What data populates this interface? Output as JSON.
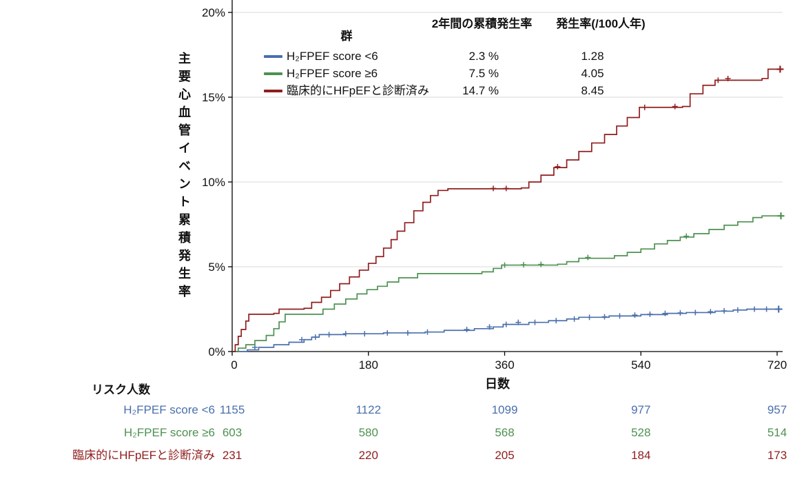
{
  "chart_data": {
    "type": "line",
    "subtype": "cumulative-incidence-step-curves",
    "title": "",
    "xlabel": "日数",
    "ylabel": "主要心血管イベント累積発生率",
    "legend_title": "群",
    "column_headers": {
      "cumulative": "2年間の累積発生率",
      "rate": "発生率(/100人年)"
    },
    "xlim": [
      0,
      740
    ],
    "ylim": [
      0,
      20
    ],
    "grid": "horizontal",
    "x_tick_values": [
      0,
      180,
      360,
      540,
      720
    ],
    "x_tick_labels": [
      "0",
      "180",
      "360",
      "540",
      "720"
    ],
    "y_tick_values": [
      0,
      5,
      10,
      15,
      20
    ],
    "y_tick_labels": [
      "0%",
      "5%",
      "10%",
      "15%",
      "20%"
    ],
    "series": [
      {
        "name": "H₂FPEF score <6",
        "color": "#4a6fad",
        "two_year_cumulative_incidence": "2.3 %",
        "incidence_rate_per_100py": "1.28",
        "steps": [
          [
            0,
            0
          ],
          [
            20,
            0.1
          ],
          [
            35,
            0.25
          ],
          [
            55,
            0.4
          ],
          [
            75,
            0.55
          ],
          [
            95,
            0.7
          ],
          [
            105,
            0.85
          ],
          [
            115,
            1.0
          ],
          [
            150,
            1.05
          ],
          [
            200,
            1.1
          ],
          [
            255,
            1.15
          ],
          [
            280,
            1.25
          ],
          [
            320,
            1.35
          ],
          [
            345,
            1.45
          ],
          [
            358,
            1.6
          ],
          [
            392,
            1.72
          ],
          [
            418,
            1.82
          ],
          [
            442,
            1.92
          ],
          [
            458,
            2.02
          ],
          [
            498,
            2.1
          ],
          [
            540,
            2.18
          ],
          [
            575,
            2.25
          ],
          [
            600,
            2.3
          ],
          [
            638,
            2.38
          ],
          [
            662,
            2.45
          ],
          [
            680,
            2.5
          ],
          [
            727,
            2.5
          ]
        ],
        "censor_marks": [
          [
            30,
            0.25
          ],
          [
            92,
            0.7
          ],
          [
            110,
            0.85
          ],
          [
            128,
            1.0
          ],
          [
            150,
            1.05
          ],
          [
            175,
            1.05
          ],
          [
            205,
            1.1
          ],
          [
            232,
            1.1
          ],
          [
            258,
            1.15
          ],
          [
            310,
            1.3
          ],
          [
            340,
            1.45
          ],
          [
            362,
            1.6
          ],
          [
            378,
            1.72
          ],
          [
            400,
            1.72
          ],
          [
            428,
            1.82
          ],
          [
            452,
            1.92
          ],
          [
            472,
            2.02
          ],
          [
            492,
            2.05
          ],
          [
            512,
            2.1
          ],
          [
            532,
            2.15
          ],
          [
            552,
            2.2
          ],
          [
            572,
            2.25
          ],
          [
            592,
            2.28
          ],
          [
            612,
            2.3
          ],
          [
            632,
            2.35
          ],
          [
            650,
            2.4
          ],
          [
            668,
            2.45
          ],
          [
            690,
            2.5
          ],
          [
            706,
            2.5
          ],
          [
            722,
            2.5
          ]
        ]
      },
      {
        "name": "H₂FPEF score ≥6",
        "color": "#4d9151",
        "two_year_cumulative_incidence": "7.5 %",
        "incidence_rate_per_100py": "4.05",
        "steps": [
          [
            0,
            0
          ],
          [
            8,
            0.2
          ],
          [
            18,
            0.4
          ],
          [
            30,
            0.65
          ],
          [
            45,
            0.95
          ],
          [
            55,
            1.35
          ],
          [
            62,
            1.75
          ],
          [
            70,
            2.2
          ],
          [
            108,
            2.2
          ],
          [
            120,
            2.5
          ],
          [
            135,
            2.8
          ],
          [
            150,
            3.1
          ],
          [
            165,
            3.4
          ],
          [
            178,
            3.65
          ],
          [
            192,
            3.85
          ],
          [
            205,
            4.1
          ],
          [
            220,
            4.35
          ],
          [
            245,
            4.6
          ],
          [
            330,
            4.7
          ],
          [
            345,
            4.9
          ],
          [
            356,
            5.1
          ],
          [
            430,
            5.15
          ],
          [
            442,
            5.3
          ],
          [
            458,
            5.5
          ],
          [
            505,
            5.65
          ],
          [
            522,
            5.85
          ],
          [
            540,
            6.05
          ],
          [
            558,
            6.35
          ],
          [
            575,
            6.55
          ],
          [
            592,
            6.75
          ],
          [
            610,
            6.95
          ],
          [
            630,
            7.2
          ],
          [
            650,
            7.45
          ],
          [
            668,
            7.65
          ],
          [
            688,
            7.9
          ],
          [
            700,
            8.0
          ],
          [
            727,
            8.0
          ]
        ],
        "censor_marks": [
          [
            360,
            5.1
          ],
          [
            385,
            5.12
          ],
          [
            408,
            5.14
          ],
          [
            470,
            5.55
          ],
          [
            600,
            6.8
          ],
          [
            725,
            8.0
          ]
        ]
      },
      {
        "name": "臨床的にHFpEFと診断済み",
        "color": "#8f1d1d",
        "two_year_cumulative_incidence": "14.7 %",
        "incidence_rate_per_100py": "8.45",
        "steps": [
          [
            0,
            0
          ],
          [
            4,
            0.4
          ],
          [
            8,
            0.9
          ],
          [
            12,
            1.3
          ],
          [
            18,
            1.8
          ],
          [
            22,
            2.2
          ],
          [
            55,
            2.25
          ],
          [
            62,
            2.5
          ],
          [
            95,
            2.55
          ],
          [
            105,
            2.9
          ],
          [
            118,
            3.2
          ],
          [
            130,
            3.6
          ],
          [
            142,
            4.0
          ],
          [
            155,
            4.4
          ],
          [
            168,
            4.8
          ],
          [
            180,
            5.2
          ],
          [
            190,
            5.6
          ],
          [
            200,
            6.1
          ],
          [
            210,
            6.6
          ],
          [
            218,
            7.1
          ],
          [
            228,
            7.6
          ],
          [
            240,
            8.3
          ],
          [
            252,
            8.8
          ],
          [
            262,
            9.2
          ],
          [
            272,
            9.5
          ],
          [
            285,
            9.6
          ],
          [
            382,
            9.65
          ],
          [
            392,
            10.0
          ],
          [
            408,
            10.4
          ],
          [
            425,
            10.85
          ],
          [
            442,
            11.3
          ],
          [
            458,
            11.8
          ],
          [
            475,
            12.3
          ],
          [
            492,
            12.8
          ],
          [
            508,
            13.3
          ],
          [
            522,
            13.8
          ],
          [
            538,
            14.4
          ],
          [
            595,
            14.45
          ],
          [
            605,
            15.2
          ],
          [
            622,
            15.7
          ],
          [
            638,
            16.0
          ],
          [
            700,
            16.1
          ],
          [
            708,
            16.65
          ],
          [
            728,
            16.65
          ]
        ],
        "censor_marks": [
          [
            345,
            9.62
          ],
          [
            362,
            9.62
          ],
          [
            430,
            10.9
          ],
          [
            545,
            14.4
          ],
          [
            585,
            14.45
          ],
          [
            642,
            16.0
          ],
          [
            655,
            16.1
          ],
          [
            724,
            16.65
          ]
        ]
      }
    ],
    "risk_table": {
      "title": "リスク人数",
      "times": [
        0,
        180,
        360,
        540,
        720
      ],
      "rows": [
        {
          "name": "H₂FPEF score <6",
          "color": "#4a6fad",
          "counts": [
            1155,
            1122,
            1099,
            977,
            957
          ]
        },
        {
          "name": "H₂FPEF score ≥6",
          "color": "#4d9151",
          "counts": [
            603,
            580,
            568,
            528,
            514
          ]
        },
        {
          "name": "臨床的にHFpEFと診断済み",
          "color": "#8f1d1d",
          "counts": [
            231,
            220,
            205,
            184,
            173
          ]
        }
      ]
    }
  }
}
